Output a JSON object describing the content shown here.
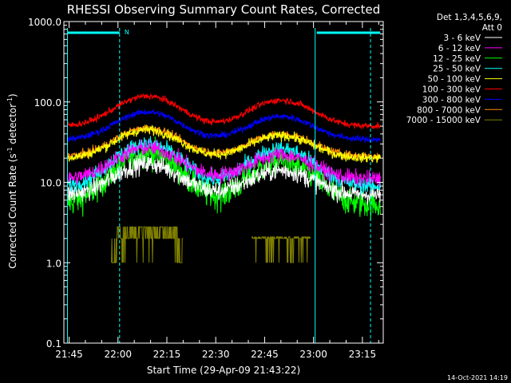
{
  "chart_data": {
    "type": "line",
    "title": "RHESSI Observing Summary Count Rates, Corrected",
    "xlabel": "Start Time (29-Apr-09 21:43:22)",
    "ylabel_main": "Corrected Count Rate (s",
    "ylabel_sup1": "-1",
    "ylabel_mid": " detector",
    "ylabel_sup2": "-1",
    "ylabel_end": ")",
    "y_scale": "log",
    "ylim": [
      0.1,
      1000
    ],
    "xlim_minutes": [
      -16.6,
      81.4
    ],
    "x_origin_label": "22:00",
    "y_ticks": [
      {
        "value": 0.1,
        "label": "0.1"
      },
      {
        "value": 1,
        "label": "1.0"
      },
      {
        "value": 10,
        "label": "10.0"
      },
      {
        "value": 100,
        "label": "100.0"
      },
      {
        "value": 1000,
        "label": "1000.0"
      }
    ],
    "x_ticks": [
      {
        "minutes": -15,
        "label": "21:45"
      },
      {
        "minutes": 0,
        "label": "22:00"
      },
      {
        "minutes": 15,
        "label": "22:15"
      },
      {
        "minutes": 30,
        "label": "22:30"
      },
      {
        "minutes": 45,
        "label": "22:45"
      },
      {
        "minutes": 60,
        "label": "23:00"
      },
      {
        "minutes": 75,
        "label": "23:15"
      }
    ],
    "legend_title_1": "Det 1,3,4,5,6,9,",
    "legend_title_2": "Att 0",
    "legend_placement": "right",
    "series": [
      {
        "name": "3 - 6 keV",
        "color": "#ffffff",
        "base": 7.0,
        "peaks": [
          17,
          14
        ],
        "noise": 0.06
      },
      {
        "name": "6 - 12 keV",
        "color": "#ff00ff",
        "base": 11.0,
        "peaks": [
          27,
          22
        ],
        "noise": 0.05
      },
      {
        "name": "12 - 25 keV",
        "color": "#00ff00",
        "base": 5.3,
        "peaks": [
          23,
          18
        ],
        "noise": 0.09
      },
      {
        "name": "25 - 50 keV",
        "color": "#00ffff",
        "base": 9.0,
        "peaks": [
          30,
          26
        ],
        "noise": 0.05
      },
      {
        "name": "50 - 100 keV",
        "color": "#ffff00",
        "base": 20.0,
        "peaks": [
          45,
          38
        ],
        "noise": 0.03
      },
      {
        "name": "100 - 300 keV",
        "color": "#ff0000",
        "base": 50.0,
        "peaks": [
          118,
          105
        ],
        "noise": 0.02
      },
      {
        "name": "300 - 800 keV",
        "color": "#0000ff",
        "base": 34.0,
        "peaks": [
          75,
          66
        ],
        "noise": 0.02
      },
      {
        "name": "800 - 7000 keV",
        "color": "#ff8c00",
        "base": 21.0,
        "peaks": [
          47,
          40
        ],
        "noise": 0.025
      },
      {
        "name": "7000 - 15000 keV",
        "color": "#808000",
        "base": null,
        "peaks": [
          2.8,
          2.1
        ],
        "noise": 0.0
      }
    ],
    "peak_times_minutes": [
      9,
      50
    ],
    "flags": {
      "saa_label": "N",
      "color": "#00ffff",
      "day_night_solid_minutes": [
        [
          -15.5,
          -13.5
        ],
        [
          60.5,
          61.0
        ]
      ],
      "dashed_minutes": [
        0.5,
        77.5
      ]
    },
    "footer_date": "14-Oct-2021 14:19"
  }
}
